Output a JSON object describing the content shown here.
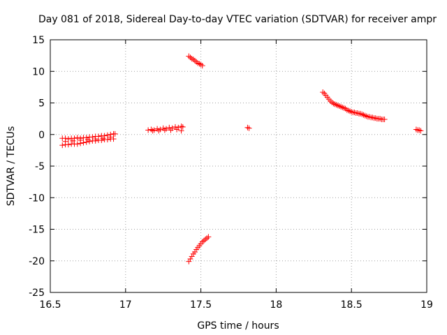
{
  "chart_data": {
    "type": "scatter",
    "title": "Day 081 of 2018, Sidereal Day-to-day VTEC variation (SDTVAR) for receiver ampr",
    "xlabel": "GPS time / hours",
    "ylabel": "SDTVAR / TECUs",
    "xlim": [
      16.5,
      19
    ],
    "ylim": [
      -25,
      15
    ],
    "xticks": [
      16.5,
      17,
      17.5,
      18,
      18.5,
      19
    ],
    "yticks": [
      -25,
      -20,
      -15,
      -10,
      -5,
      0,
      5,
      10,
      15
    ],
    "xtick_labels": [
      "16.5",
      "17",
      "17.5",
      "18",
      "18.5",
      "19"
    ],
    "ytick_labels": [
      "-25",
      "-20",
      "-15",
      "-10",
      "-5",
      "0",
      "5",
      "10",
      "15"
    ],
    "grid": true,
    "marker": "+",
    "marker_color": "#ff0000",
    "series": [
      {
        "name": "SDTVAR",
        "points": [
          [
            16.58,
            -0.6
          ],
          [
            16.6,
            -0.6
          ],
          [
            16.62,
            -0.7
          ],
          [
            16.64,
            -0.6
          ],
          [
            16.66,
            -0.6
          ],
          [
            16.68,
            -0.5
          ],
          [
            16.7,
            -0.6
          ],
          [
            16.72,
            -0.5
          ],
          [
            16.74,
            -0.5
          ],
          [
            16.76,
            -0.4
          ],
          [
            16.78,
            -0.4
          ],
          [
            16.8,
            -0.3
          ],
          [
            16.82,
            -0.3
          ],
          [
            16.84,
            -0.2
          ],
          [
            16.86,
            -0.2
          ],
          [
            16.88,
            -0.1
          ],
          [
            16.9,
            0.0
          ],
          [
            16.92,
            0.1
          ],
          [
            16.93,
            0.1
          ],
          [
            16.58,
            -1.7
          ],
          [
            16.6,
            -1.6
          ],
          [
            16.62,
            -1.6
          ],
          [
            16.64,
            -1.5
          ],
          [
            16.66,
            -1.5
          ],
          [
            16.68,
            -1.5
          ],
          [
            16.7,
            -1.4
          ],
          [
            16.72,
            -1.3
          ],
          [
            16.74,
            -1.2
          ],
          [
            16.76,
            -1.1
          ],
          [
            16.78,
            -1.0
          ],
          [
            16.8,
            -1.0
          ],
          [
            16.82,
            -0.9
          ],
          [
            16.84,
            -0.9
          ],
          [
            16.86,
            -0.8
          ],
          [
            16.88,
            -0.8
          ],
          [
            16.9,
            -0.7
          ],
          [
            16.92,
            -0.7
          ],
          [
            16.6,
            -1.1
          ],
          [
            16.65,
            -1.0
          ],
          [
            16.7,
            -0.9
          ],
          [
            16.75,
            -0.8
          ],
          [
            16.8,
            -0.7
          ],
          [
            16.85,
            -0.6
          ],
          [
            16.9,
            -0.4
          ],
          [
            17.15,
            0.7
          ],
          [
            17.17,
            0.8
          ],
          [
            17.19,
            0.7
          ],
          [
            17.21,
            0.9
          ],
          [
            17.23,
            0.8
          ],
          [
            17.25,
            1.0
          ],
          [
            17.27,
            0.9
          ],
          [
            17.29,
            1.1
          ],
          [
            17.31,
            1.0
          ],
          [
            17.33,
            1.2
          ],
          [
            17.35,
            1.1
          ],
          [
            17.37,
            1.3
          ],
          [
            17.38,
            1.2
          ],
          [
            17.18,
            0.6
          ],
          [
            17.22,
            0.6
          ],
          [
            17.26,
            0.7
          ],
          [
            17.3,
            0.7
          ],
          [
            17.34,
            0.8
          ],
          [
            17.37,
            0.6
          ],
          [
            17.42,
            12.4
          ],
          [
            17.43,
            12.2
          ],
          [
            17.44,
            12.0
          ],
          [
            17.45,
            11.9
          ],
          [
            17.46,
            11.7
          ],
          [
            17.47,
            11.5
          ],
          [
            17.48,
            11.3
          ],
          [
            17.49,
            11.2
          ],
          [
            17.5,
            11.1
          ],
          [
            17.51,
            10.9
          ],
          [
            17.42,
            -20.1
          ],
          [
            17.43,
            -19.7
          ],
          [
            17.44,
            -19.3
          ],
          [
            17.45,
            -18.9
          ],
          [
            17.46,
            -18.6
          ],
          [
            17.47,
            -18.2
          ],
          [
            17.48,
            -17.9
          ],
          [
            17.49,
            -17.6
          ],
          [
            17.5,
            -17.3
          ],
          [
            17.51,
            -17.0
          ],
          [
            17.52,
            -16.8
          ],
          [
            17.53,
            -16.6
          ],
          [
            17.54,
            -16.4
          ],
          [
            17.55,
            -16.2
          ],
          [
            17.81,
            1.1
          ],
          [
            17.82,
            1.0
          ],
          [
            18.31,
            6.7
          ],
          [
            18.32,
            6.5
          ],
          [
            18.33,
            6.2
          ],
          [
            18.34,
            5.9
          ],
          [
            18.35,
            5.6
          ],
          [
            18.36,
            5.3
          ],
          [
            18.37,
            5.1
          ],
          [
            18.38,
            4.9
          ],
          [
            18.39,
            4.8
          ],
          [
            18.4,
            4.7
          ],
          [
            18.41,
            4.6
          ],
          [
            18.42,
            4.5
          ],
          [
            18.43,
            4.4
          ],
          [
            18.44,
            4.3
          ],
          [
            18.45,
            4.2
          ],
          [
            18.46,
            4.1
          ],
          [
            18.47,
            3.9
          ],
          [
            18.48,
            3.8
          ],
          [
            18.49,
            3.7
          ],
          [
            18.5,
            3.6
          ],
          [
            18.51,
            3.5
          ],
          [
            18.52,
            3.5
          ],
          [
            18.53,
            3.4
          ],
          [
            18.54,
            3.4
          ],
          [
            18.55,
            3.3
          ],
          [
            18.56,
            3.3
          ],
          [
            18.57,
            3.2
          ],
          [
            18.58,
            3.1
          ],
          [
            18.59,
            3.0
          ],
          [
            18.6,
            2.9
          ],
          [
            18.61,
            2.8
          ],
          [
            18.62,
            2.8
          ],
          [
            18.63,
            2.7
          ],
          [
            18.64,
            2.7
          ],
          [
            18.65,
            2.6
          ],
          [
            18.66,
            2.6
          ],
          [
            18.67,
            2.5
          ],
          [
            18.68,
            2.5
          ],
          [
            18.69,
            2.5
          ],
          [
            18.7,
            2.4
          ],
          [
            18.71,
            2.4
          ],
          [
            18.72,
            2.4
          ],
          [
            18.93,
            0.8
          ],
          [
            18.94,
            0.7
          ],
          [
            18.95,
            0.7
          ],
          [
            18.96,
            0.6
          ]
        ]
      }
    ]
  }
}
